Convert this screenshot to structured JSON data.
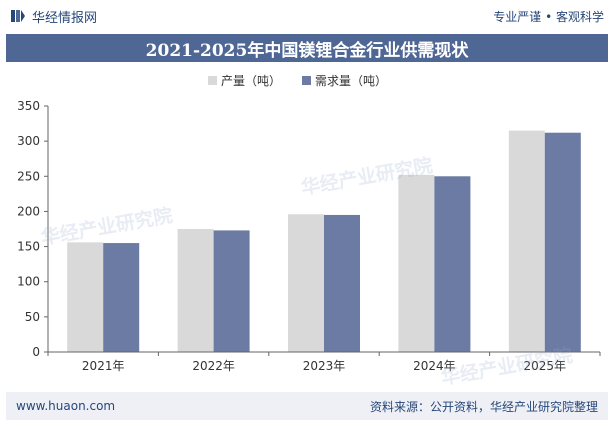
{
  "header": {
    "brand": "华经情报网",
    "tagline": "专业严谨 • 客观科学"
  },
  "footer": {
    "url": "www.huaon.com",
    "source": "资料来源：公开资料，华经产业研究院整理"
  },
  "watermark": {
    "text": "华经产业研究院",
    "url": "www.huaon.com"
  },
  "colors": {
    "brand": "#27477a",
    "title_bg": "#4f6795",
    "series_production": "#d9d9d9",
    "series_demand": "#6b7ba3"
  },
  "chart_data": {
    "type": "bar",
    "title": "2021-2025年中国镁锂合金行业供需现状",
    "categories": [
      "2021年",
      "2022年",
      "2023年",
      "2024年",
      "2025年"
    ],
    "series": [
      {
        "name": "产量（吨）",
        "values": [
          156,
          175,
          196,
          252,
          315
        ]
      },
      {
        "name": "需求量（吨）",
        "values": [
          155,
          173,
          195,
          250,
          312
        ]
      }
    ],
    "ylim": [
      0,
      350
    ],
    "yticks": [
      0,
      50,
      100,
      150,
      200,
      250,
      300,
      350
    ],
    "grid": false,
    "legend_position": "top-center"
  }
}
